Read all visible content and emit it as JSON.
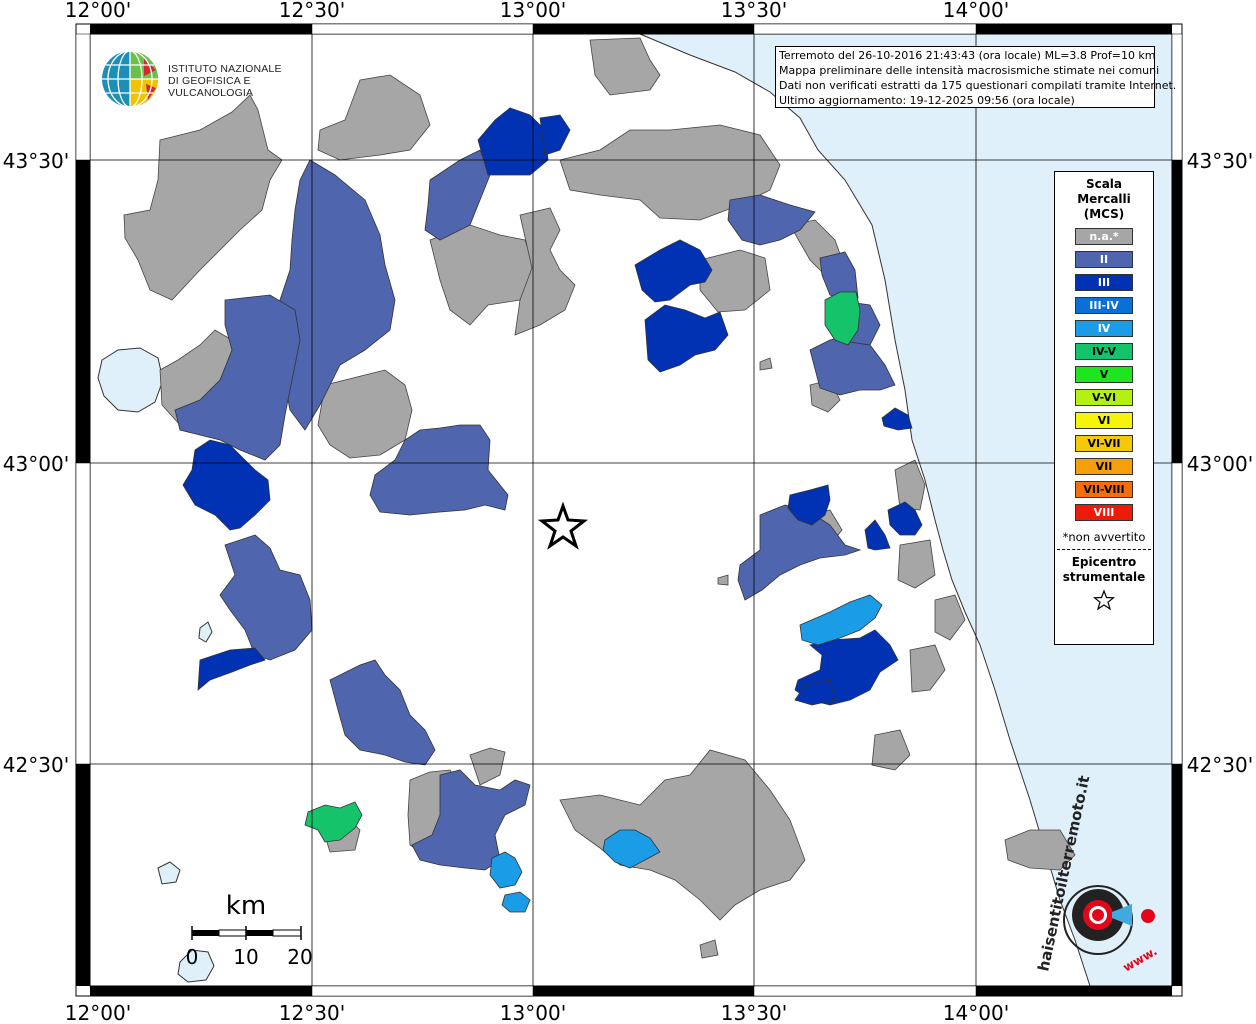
{
  "map": {
    "lon_labels": [
      "12°00'",
      "12°30'",
      "13°00'",
      "13°30'",
      "14°00'"
    ],
    "lat_labels": [
      "43°30'",
      "43°00'",
      "42°30'"
    ],
    "sea_color": "#dff0fb",
    "land_color": "#ffffff",
    "epicenter": {
      "lon": 13.06,
      "lat": 42.91
    }
  },
  "info": {
    "line1": "Terremoto del 26-10-2016 21:43:43 (ora locale) ML=3.8 Prof=10 km",
    "line2": "Mappa preliminare delle intensità macrosismiche stimate nei comuni",
    "line3": "Dati non verificati estratti da 175 questionari compilati tramite Internet.",
    "line4": "Ultimo aggiornamento: 19-12-2025 09:56 (ora locale)"
  },
  "legend": {
    "title1": "Scala",
    "title2": "Mercalli",
    "title3": "(MCS)",
    "items": [
      {
        "label": "n.a.*",
        "color": "#a6a6a6",
        "text": "#ffffff"
      },
      {
        "label": "II",
        "color": "#4f66ae",
        "text": "#ffffff"
      },
      {
        "label": "III",
        "color": "#0232b4",
        "text": "#ffffff"
      },
      {
        "label": "III-IV",
        "color": "#0a6fd6",
        "text": "#ffffff"
      },
      {
        "label": "IV",
        "color": "#1a9ce6",
        "text": "#ffffff"
      },
      {
        "label": "IV-V",
        "color": "#15c36b",
        "text": "#000000"
      },
      {
        "label": "V",
        "color": "#1ee61e",
        "text": "#000000"
      },
      {
        "label": "V-VI",
        "color": "#b4f014",
        "text": "#000000"
      },
      {
        "label": "VI",
        "color": "#f5f50a",
        "text": "#000000"
      },
      {
        "label": "VI-VII",
        "color": "#f5c80a",
        "text": "#000000"
      },
      {
        "label": "VII",
        "color": "#f5a00a",
        "text": "#000000"
      },
      {
        "label": "VII-VIII",
        "color": "#f56e0a",
        "text": "#000000"
      },
      {
        "label": "VIII",
        "color": "#ee1a0a",
        "text": "#ffffff"
      }
    ],
    "note": "*non avvertito",
    "epicenter_title1": "Epicentro",
    "epicenter_title2": "strumentale"
  },
  "scalebar": {
    "unit": "km",
    "labels": [
      "0",
      "10",
      "20"
    ]
  },
  "logos": {
    "ingv_line1": "ISTITUTO NAZIONALE",
    "ingv_line2": "DI GEOFISICA E VULCANOLOGIA",
    "hst_text": "haisentitoilterremoto.it",
    "hst_www": "www."
  }
}
